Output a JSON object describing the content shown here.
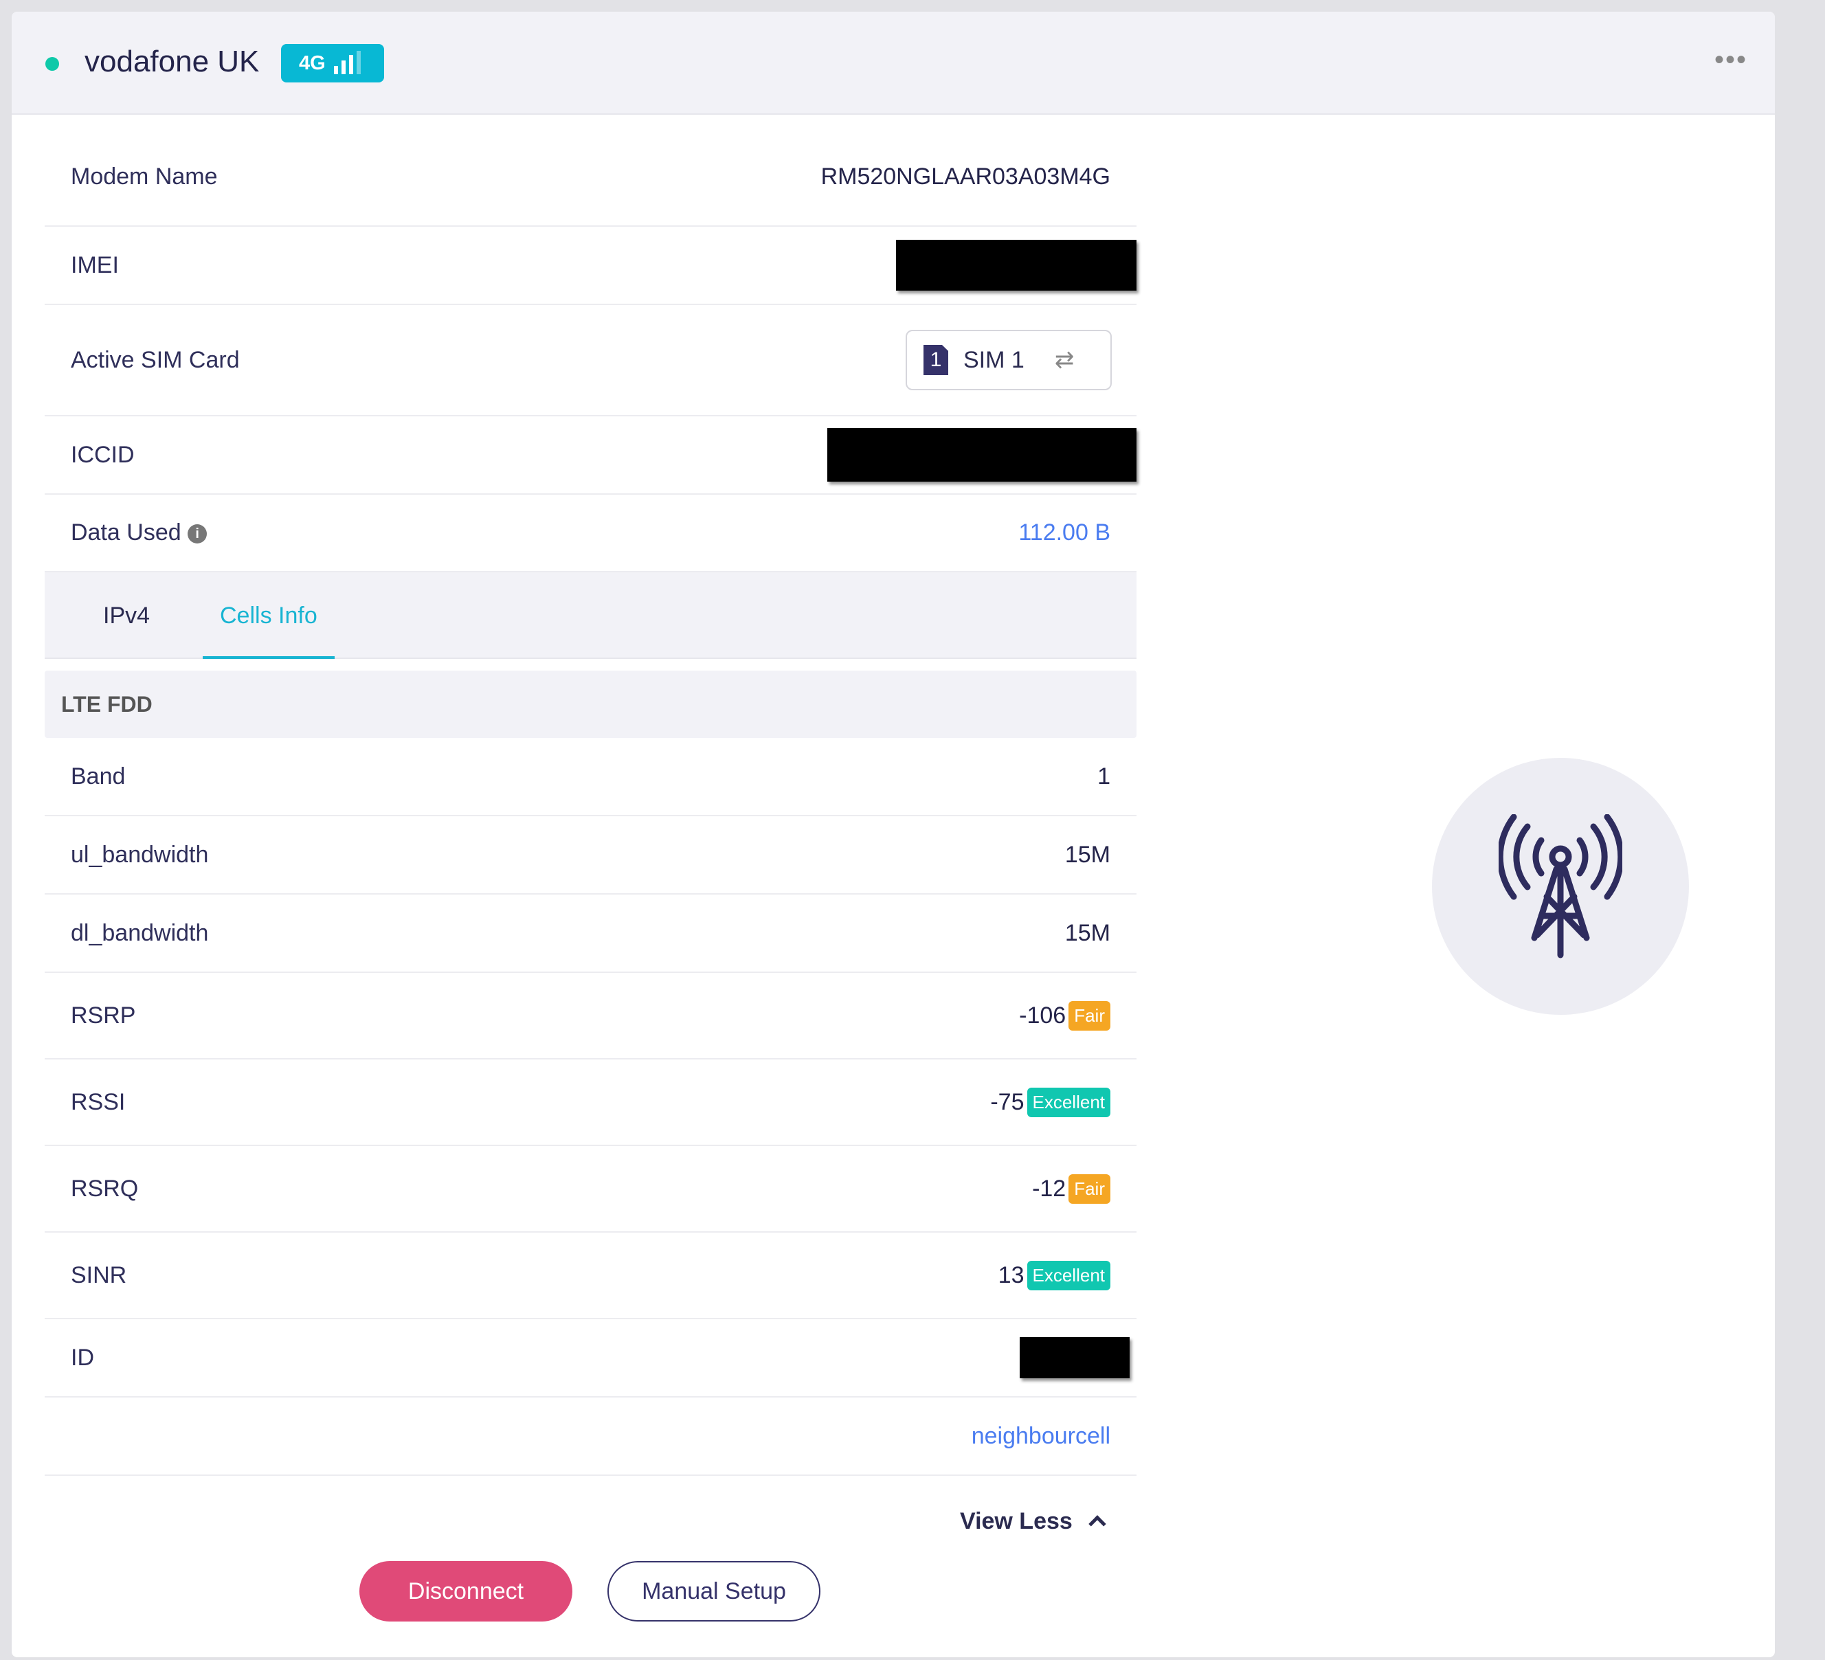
{
  "header": {
    "carrier": "vodafone UK",
    "network_badge": "4G",
    "status_color": "#0fc9a9",
    "signal_bars": 3,
    "signal_bars_total": 4,
    "more_icon": "more-horizontal-icon"
  },
  "info": [
    {
      "label": "Modem Name",
      "value": "RM520NGLAAR03A03M4G"
    },
    {
      "label": "IMEI",
      "value": null
    },
    {
      "label": "Active SIM Card",
      "sim_number": "1",
      "value": "SIM 1"
    },
    {
      "label": "ICCID",
      "value": null
    },
    {
      "label": "Data Used",
      "value": "112.00 B"
    }
  ],
  "tabs": [
    {
      "label": "IPv4"
    },
    {
      "label": "Cells Info",
      "active": true
    }
  ],
  "cells": {
    "section": "LTE FDD",
    "rows": [
      {
        "label": "Band",
        "value": "1"
      },
      {
        "label": "ul_bandwidth",
        "value": "15M"
      },
      {
        "label": "dl_bandwidth",
        "value": "15M"
      },
      {
        "label": "RSRP",
        "value": "-106",
        "quality": "Fair"
      },
      {
        "label": "RSSI",
        "value": "-75",
        "quality": "Excellent"
      },
      {
        "label": "RSRQ",
        "value": "-12",
        "quality": "Fair"
      },
      {
        "label": "SINR",
        "value": "13",
        "quality": "Excellent"
      },
      {
        "label": "ID",
        "value": null
      }
    ],
    "link": "neighbourcell"
  },
  "view_less": "View Less",
  "buttons": {
    "disconnect": "Disconnect",
    "manual_setup": "Manual Setup"
  }
}
